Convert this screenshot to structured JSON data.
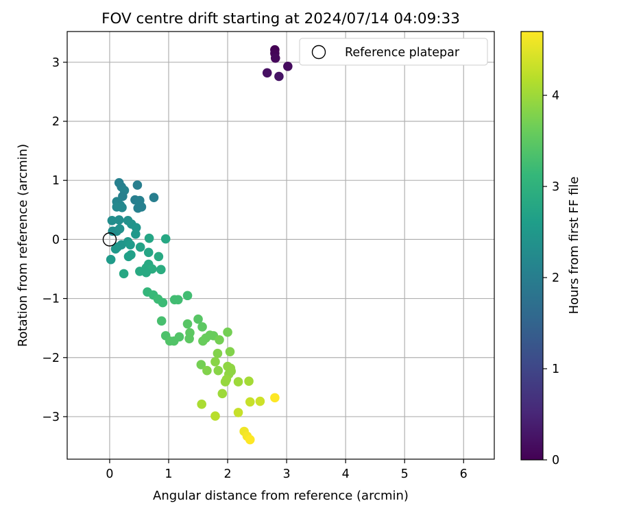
{
  "chart_data": {
    "type": "scatter",
    "title": "FOV centre drift starting at 2024/07/14 04:09:33",
    "xlabel": "Angular distance from reference (arcmin)",
    "ylabel": "Rotation from reference (arcmin)",
    "xlim": [
      -0.72,
      6.52
    ],
    "ylim": [
      -3.72,
      3.52
    ],
    "xticks": [
      0,
      1,
      2,
      3,
      4,
      5,
      6
    ],
    "yticks": [
      -3,
      -2,
      -1,
      0,
      1,
      2,
      3
    ],
    "grid": true,
    "legend": {
      "position": "top-right",
      "entries": [
        "Reference platepar"
      ]
    },
    "reference_point": {
      "x": 0,
      "y": 0,
      "label": "Reference platepar"
    },
    "colorbar": {
      "label": "Hours from first FF file",
      "colormap": "viridis",
      "range": [
        0,
        4.7
      ],
      "ticks": [
        0,
        1,
        2,
        3,
        4
      ]
    },
    "points": [
      {
        "x": 2.8,
        "y": 3.21,
        "c": 0.0
      },
      {
        "x": 2.8,
        "y": 3.15,
        "c": 0.05
      },
      {
        "x": 2.81,
        "y": 3.07,
        "c": 0.1
      },
      {
        "x": 3.02,
        "y": 2.93,
        "c": 0.15
      },
      {
        "x": 2.67,
        "y": 2.82,
        "c": 0.2
      },
      {
        "x": 2.87,
        "y": 2.76,
        "c": 0.25
      },
      {
        "x": 0.16,
        "y": 0.96,
        "c": 2.05
      },
      {
        "x": 0.2,
        "y": 0.89,
        "c": 2.05
      },
      {
        "x": 0.47,
        "y": 0.92,
        "c": 2.0
      },
      {
        "x": 0.25,
        "y": 0.83,
        "c": 2.1
      },
      {
        "x": 0.22,
        "y": 0.73,
        "c": 2.05
      },
      {
        "x": 0.75,
        "y": 0.71,
        "c": 2.0
      },
      {
        "x": 0.43,
        "y": 0.67,
        "c": 2.0
      },
      {
        "x": 0.51,
        "y": 0.66,
        "c": 2.05
      },
      {
        "x": 0.12,
        "y": 0.64,
        "c": 2.15
      },
      {
        "x": 0.18,
        "y": 0.58,
        "c": 2.15
      },
      {
        "x": 0.12,
        "y": 0.55,
        "c": 2.2
      },
      {
        "x": 0.21,
        "y": 0.54,
        "c": 2.2
      },
      {
        "x": 0.54,
        "y": 0.55,
        "c": 2.05
      },
      {
        "x": 0.48,
        "y": 0.53,
        "c": 2.05
      },
      {
        "x": 0.04,
        "y": 0.32,
        "c": 2.3
      },
      {
        "x": 0.16,
        "y": 0.33,
        "c": 2.3
      },
      {
        "x": 0.31,
        "y": 0.32,
        "c": 2.35
      },
      {
        "x": 0.37,
        "y": 0.26,
        "c": 2.4
      },
      {
        "x": 0.45,
        "y": 0.2,
        "c": 2.45
      },
      {
        "x": 0.05,
        "y": 0.14,
        "c": 2.3
      },
      {
        "x": 0.12,
        "y": 0.14,
        "c": 2.3
      },
      {
        "x": 0.17,
        "y": 0.18,
        "c": 2.35
      },
      {
        "x": 0.44,
        "y": 0.09,
        "c": 2.5
      },
      {
        "x": 0.95,
        "y": 0.01,
        "c": 2.8
      },
      {
        "x": 0.67,
        "y": 0.02,
        "c": 2.75
      },
      {
        "x": 0.2,
        "y": -0.09,
        "c": 2.45
      },
      {
        "x": 0.13,
        "y": -0.13,
        "c": 2.45
      },
      {
        "x": 0.1,
        "y": -0.16,
        "c": 2.5
      },
      {
        "x": 0.31,
        "y": -0.04,
        "c": 2.5
      },
      {
        "x": 0.35,
        "y": -0.09,
        "c": 2.55
      },
      {
        "x": 0.52,
        "y": -0.13,
        "c": 2.7
      },
      {
        "x": 0.66,
        "y": -0.22,
        "c": 2.75
      },
      {
        "x": 0.36,
        "y": -0.26,
        "c": 2.65
      },
      {
        "x": 0.32,
        "y": -0.29,
        "c": 2.65
      },
      {
        "x": 0.83,
        "y": -0.29,
        "c": 2.85
      },
      {
        "x": 0.02,
        "y": -0.34,
        "c": 2.55
      },
      {
        "x": 0.66,
        "y": -0.42,
        "c": 2.85
      },
      {
        "x": 0.62,
        "y": -0.48,
        "c": 2.85
      },
      {
        "x": 0.72,
        "y": -0.5,
        "c": 2.9
      },
      {
        "x": 0.87,
        "y": -0.51,
        "c": 2.9
      },
      {
        "x": 0.51,
        "y": -0.54,
        "c": 2.85
      },
      {
        "x": 0.62,
        "y": -0.56,
        "c": 2.85
      },
      {
        "x": 0.24,
        "y": -0.58,
        "c": 2.8
      },
      {
        "x": 0.64,
        "y": -0.89,
        "c": 3.1
      },
      {
        "x": 0.74,
        "y": -0.94,
        "c": 3.15
      },
      {
        "x": 0.82,
        "y": -1.01,
        "c": 3.2
      },
      {
        "x": 1.32,
        "y": -0.95,
        "c": 3.25
      },
      {
        "x": 1.1,
        "y": -1.02,
        "c": 3.25
      },
      {
        "x": 1.16,
        "y": -1.02,
        "c": 3.25
      },
      {
        "x": 0.9,
        "y": -1.07,
        "c": 3.2
      },
      {
        "x": 0.88,
        "y": -1.38,
        "c": 3.3
      },
      {
        "x": 1.5,
        "y": -1.35,
        "c": 3.45
      },
      {
        "x": 1.32,
        "y": -1.43,
        "c": 3.45
      },
      {
        "x": 1.57,
        "y": -1.48,
        "c": 3.5
      },
      {
        "x": 1.36,
        "y": -1.58,
        "c": 3.5
      },
      {
        "x": 0.95,
        "y": -1.63,
        "c": 3.35
      },
      {
        "x": 1.18,
        "y": -1.65,
        "c": 3.4
      },
      {
        "x": 1.35,
        "y": -1.68,
        "c": 3.5
      },
      {
        "x": 1.02,
        "y": -1.72,
        "c": 3.4
      },
      {
        "x": 1.09,
        "y": -1.72,
        "c": 3.4
      },
      {
        "x": 1.7,
        "y": -1.62,
        "c": 3.6
      },
      {
        "x": 1.76,
        "y": -1.63,
        "c": 3.6
      },
      {
        "x": 1.63,
        "y": -1.67,
        "c": 3.6
      },
      {
        "x": 1.58,
        "y": -1.72,
        "c": 3.6
      },
      {
        "x": 1.86,
        "y": -1.7,
        "c": 3.7
      },
      {
        "x": 2.0,
        "y": -1.57,
        "c": 3.7
      },
      {
        "x": 2.04,
        "y": -1.9,
        "c": 3.8
      },
      {
        "x": 1.83,
        "y": -1.93,
        "c": 3.8
      },
      {
        "x": 1.79,
        "y": -2.07,
        "c": 3.85
      },
      {
        "x": 1.55,
        "y": -2.12,
        "c": 3.7
      },
      {
        "x": 2.0,
        "y": -2.15,
        "c": 3.9
      },
      {
        "x": 2.05,
        "y": -2.18,
        "c": 3.9
      },
      {
        "x": 2.06,
        "y": -2.23,
        "c": 3.9
      },
      {
        "x": 1.65,
        "y": -2.22,
        "c": 3.8
      },
      {
        "x": 1.84,
        "y": -2.22,
        "c": 3.85
      },
      {
        "x": 2.02,
        "y": -2.28,
        "c": 3.9
      },
      {
        "x": 1.98,
        "y": -2.37,
        "c": 3.95
      },
      {
        "x": 1.96,
        "y": -2.41,
        "c": 3.95
      },
      {
        "x": 2.18,
        "y": -2.41,
        "c": 4.0
      },
      {
        "x": 2.36,
        "y": -2.4,
        "c": 4.05
      },
      {
        "x": 1.91,
        "y": -2.61,
        "c": 4.0
      },
      {
        "x": 2.38,
        "y": -2.75,
        "c": 4.3
      },
      {
        "x": 2.55,
        "y": -2.74,
        "c": 4.35
      },
      {
        "x": 2.8,
        "y": -2.68,
        "c": 4.7
      },
      {
        "x": 1.56,
        "y": -2.79,
        "c": 4.1
      },
      {
        "x": 2.18,
        "y": -2.93,
        "c": 4.3
      },
      {
        "x": 1.79,
        "y": -2.99,
        "c": 4.2
      },
      {
        "x": 2.28,
        "y": -3.25,
        "c": 4.6
      },
      {
        "x": 2.33,
        "y": -3.33,
        "c": 4.65
      },
      {
        "x": 2.38,
        "y": -3.39,
        "c": 4.7
      }
    ]
  }
}
